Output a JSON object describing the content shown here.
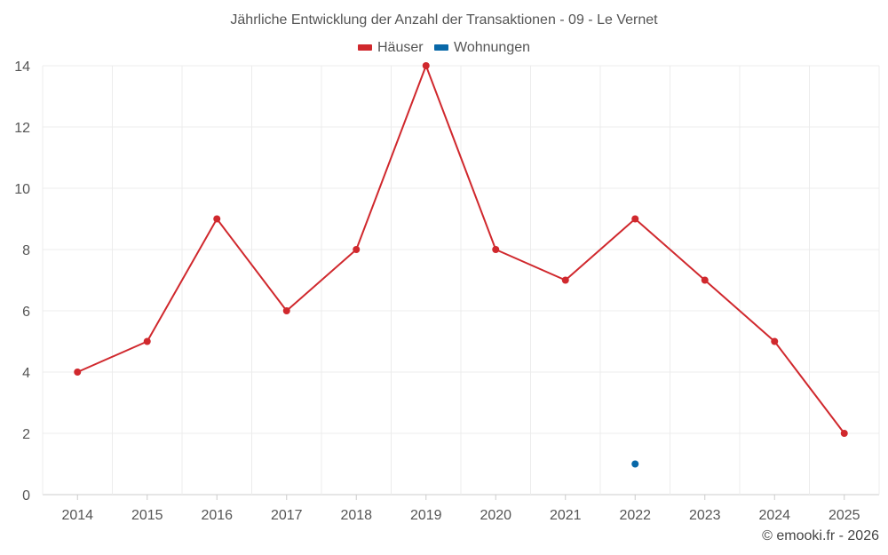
{
  "chart_data": {
    "type": "line",
    "title": "Jährliche Entwicklung der Anzahl der Transaktionen - 09 - Le Vernet",
    "x": [
      "2014",
      "2015",
      "2016",
      "2017",
      "2018",
      "2019",
      "2020",
      "2021",
      "2022",
      "2023",
      "2024",
      "2025"
    ],
    "ylim": [
      0,
      14
    ],
    "yticks": [
      0,
      2,
      4,
      6,
      8,
      10,
      12,
      14
    ],
    "grid": true,
    "legend_position": "top-center",
    "series": [
      {
        "name": "Häuser",
        "color": "#d0282d",
        "values": [
          4,
          5,
          9,
          6,
          8,
          14,
          8,
          7,
          9,
          7,
          5,
          2
        ]
      },
      {
        "name": "Wohnungen",
        "color": "#0868a8",
        "values": [
          null,
          null,
          null,
          null,
          null,
          null,
          null,
          null,
          1,
          null,
          null,
          null
        ]
      }
    ]
  },
  "credit": "© emooki.fr - 2026"
}
